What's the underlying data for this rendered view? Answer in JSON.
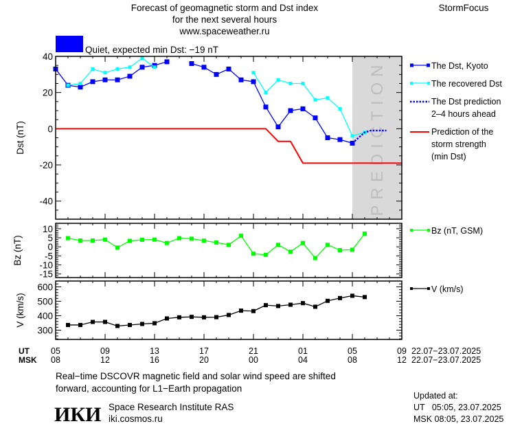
{
  "header": {
    "title_line1": "Forecast of geomagnetic storm and Dst index",
    "title_line2": "for the next several hours",
    "website": "www.spaceweather.ru",
    "brand": "StormFocus",
    "status_text": "Quiet, expected min Dst: −19 nT",
    "status_color": "#0000ff"
  },
  "legend": {
    "dst_kyoto": "The Dst, Kyoto",
    "recovered_line1": "The recovered Dst",
    "prediction_line1": "The Dst prediction",
    "prediction_line2": "2–4 hours ahead",
    "storm_line1": "Prediction of the",
    "storm_line2": "storm strength",
    "storm_line3": "(min Dst)",
    "bz": "Bz (nT, GSM)",
    "v": "V (km/s)"
  },
  "prediction_label": "PREDICTION",
  "time_axis": {
    "ut_label": "UT",
    "msk_label": "MSK",
    "ut_ticks": [
      "05",
      "09",
      "13",
      "17",
      "21",
      "01",
      "05",
      "09"
    ],
    "msk_ticks": [
      "08",
      "12",
      "16",
      "20",
      "00",
      "04",
      "08",
      "12"
    ],
    "ut_dates": "22.07−23.07.2025",
    "msk_dates": "22.07−23.07.2025"
  },
  "footer": {
    "note_line1": "Real−time DSCOVR magnetic field and solar wind speed are shifted",
    "note_line2": "forward, accounting for L1−Earth propagation",
    "logo_text": "ИКИ",
    "institute": "Space Research Institute RAS",
    "institute_site": "iki.cosmos.ru",
    "updated_label": "Updated at:",
    "updated_ut": "UT   05:05, 23.07.2025",
    "updated_msk": "MSK 08:05, 23.07.2025"
  },
  "colors": {
    "dst": "#0000ff",
    "recovered": "#00ffff",
    "prediction": "#0000ff",
    "storm": "#ff0000",
    "bz": "#00ff00",
    "v": "#000000",
    "prediction_zone": "#d9d9d9"
  },
  "chart_data": [
    {
      "type": "line",
      "ylabel": "Dst (nT)",
      "xlim": [
        "2025-07-22 05:00",
        "2025-07-23 09:00"
      ],
      "ylim": [
        -50,
        40
      ],
      "yticks": [
        40,
        20,
        0,
        -20,
        -40
      ],
      "prediction_zone": [
        "2025-07-23 05:00",
        "2025-07-23 09:00"
      ],
      "series": [
        {
          "name": "The Dst, Kyoto",
          "x": [
            "2025-07-22 05:00",
            "2025-07-22 06:00",
            "2025-07-22 07:00",
            "2025-07-22 08:00",
            "2025-07-22 09:00",
            "2025-07-22 10:00",
            "2025-07-22 11:00",
            "2025-07-22 12:00",
            "2025-07-22 13:00",
            "2025-07-22 14:00",
            "2025-07-22 15:00",
            "2025-07-22 16:00",
            "2025-07-22 17:00",
            "2025-07-22 18:00",
            "2025-07-22 19:00",
            "2025-07-22 20:00",
            "2025-07-22 21:00",
            "2025-07-22 22:00",
            "2025-07-22 23:00",
            "2025-07-23 00:00",
            "2025-07-23 01:00",
            "2025-07-23 02:00",
            "2025-07-23 03:00",
            "2025-07-23 04:00",
            "2025-07-23 05:00"
          ],
          "values": [
            33,
            24,
            23,
            26,
            27,
            27,
            29,
            34,
            35,
            37,
            null,
            36,
            34,
            30,
            33,
            27,
            26,
            12,
            1,
            10,
            11,
            6,
            -5,
            -6,
            -8
          ]
        },
        {
          "name": "The recovered Dst",
          "x": [
            "2025-07-22 05:00",
            "2025-07-22 06:00",
            "2025-07-22 07:00",
            "2025-07-22 08:00",
            "2025-07-22 09:00",
            "2025-07-22 10:00",
            "2025-07-22 11:00",
            "2025-07-22 12:00",
            "2025-07-22 13:00",
            "2025-07-22 14:00",
            "2025-07-22 15:00",
            "2025-07-22 16:00",
            "2025-07-22 17:00",
            "2025-07-22 18:00",
            "2025-07-22 19:00",
            "2025-07-22 20:00",
            "2025-07-22 21:00",
            "2025-07-22 22:00",
            "2025-07-22 23:00",
            "2025-07-23 00:00",
            "2025-07-23 01:00",
            "2025-07-23 02:00",
            "2025-07-23 03:00",
            "2025-07-23 04:00",
            "2025-07-23 05:00",
            "2025-07-23 06:00"
          ],
          "values": [
            null,
            24,
            25,
            33,
            31,
            33,
            34,
            39,
            34,
            null,
            null,
            null,
            null,
            null,
            null,
            null,
            31,
            20,
            27,
            25,
            25,
            16,
            17,
            11,
            -4,
            -2
          ]
        },
        {
          "name": "The Dst prediction 2–4 hours ahead",
          "x": [
            "2025-07-23 05:00",
            "2025-07-23 06:00",
            "2025-07-23 06:30",
            "2025-07-23 07:45"
          ],
          "values": [
            -8,
            -2,
            -1,
            -1
          ]
        },
        {
          "name": "Prediction of the storm strength (min Dst)",
          "x": [
            "2025-07-22 05:00",
            "2025-07-22 22:00",
            "2025-07-22 23:00",
            "2025-07-23 00:00",
            "2025-07-23 01:00",
            "2025-07-23 09:00"
          ],
          "values": [
            0,
            0,
            -7,
            -7,
            -19,
            -19
          ]
        }
      ]
    },
    {
      "type": "line",
      "ylabel": "Bz (nT)",
      "xlim": [
        "2025-07-22 05:00",
        "2025-07-23 09:00"
      ],
      "ylim": [
        -17,
        13
      ],
      "yticks": [
        10,
        5,
        0,
        -5,
        -10,
        -15
      ],
      "series": [
        {
          "name": "Bz (nT, GSM)",
          "x": [
            "2025-07-22 06:00",
            "2025-07-22 07:00",
            "2025-07-22 08:00",
            "2025-07-22 09:00",
            "2025-07-22 10:00",
            "2025-07-22 11:00",
            "2025-07-22 12:00",
            "2025-07-22 13:00",
            "2025-07-22 14:00",
            "2025-07-22 15:00",
            "2025-07-22 16:00",
            "2025-07-22 17:00",
            "2025-07-22 18:00",
            "2025-07-22 19:00",
            "2025-07-22 20:00",
            "2025-07-22 21:00",
            "2025-07-22 22:00",
            "2025-07-22 23:00",
            "2025-07-23 00:00",
            "2025-07-23 01:00",
            "2025-07-23 02:00",
            "2025-07-23 03:00",
            "2025-07-23 04:00",
            "2025-07-23 05:00",
            "2025-07-23 06:00"
          ],
          "values": [
            4.8,
            3.5,
            3.5,
            4.0,
            -0.4,
            3.3,
            3.9,
            4.0,
            2.1,
            4.8,
            4.5,
            3.4,
            2.4,
            1.1,
            6.1,
            -3.8,
            -4.4,
            1.1,
            -2.7,
            2.1,
            -6.2,
            1.1,
            -1.8,
            -1.6,
            7.3
          ]
        }
      ]
    },
    {
      "type": "line",
      "ylabel": "V (km/s)",
      "xlim": [
        "2025-07-22 05:00",
        "2025-07-23 09:00"
      ],
      "ylim": [
        236,
        640
      ],
      "yticks": [
        600,
        500,
        400,
        300
      ],
      "series": [
        {
          "name": "V (km/s)",
          "x": [
            "2025-07-22 06:00",
            "2025-07-22 07:00",
            "2025-07-22 08:00",
            "2025-07-22 09:00",
            "2025-07-22 10:00",
            "2025-07-22 11:00",
            "2025-07-22 12:00",
            "2025-07-22 13:00",
            "2025-07-22 14:00",
            "2025-07-22 15:00",
            "2025-07-22 16:00",
            "2025-07-22 17:00",
            "2025-07-22 18:00",
            "2025-07-22 19:00",
            "2025-07-22 20:00",
            "2025-07-22 21:00",
            "2025-07-22 22:00",
            "2025-07-22 23:00",
            "2025-07-23 00:00",
            "2025-07-23 01:00",
            "2025-07-23 02:00",
            "2025-07-23 03:00",
            "2025-07-23 04:00",
            "2025-07-23 05:00",
            "2025-07-23 06:00"
          ],
          "values": [
            336,
            336,
            357,
            357,
            329,
            336,
            343,
            348,
            381,
            389,
            392,
            389,
            390,
            405,
            435,
            432,
            473,
            467,
            476,
            487,
            462,
            503,
            522,
            538,
            529
          ]
        }
      ]
    }
  ]
}
